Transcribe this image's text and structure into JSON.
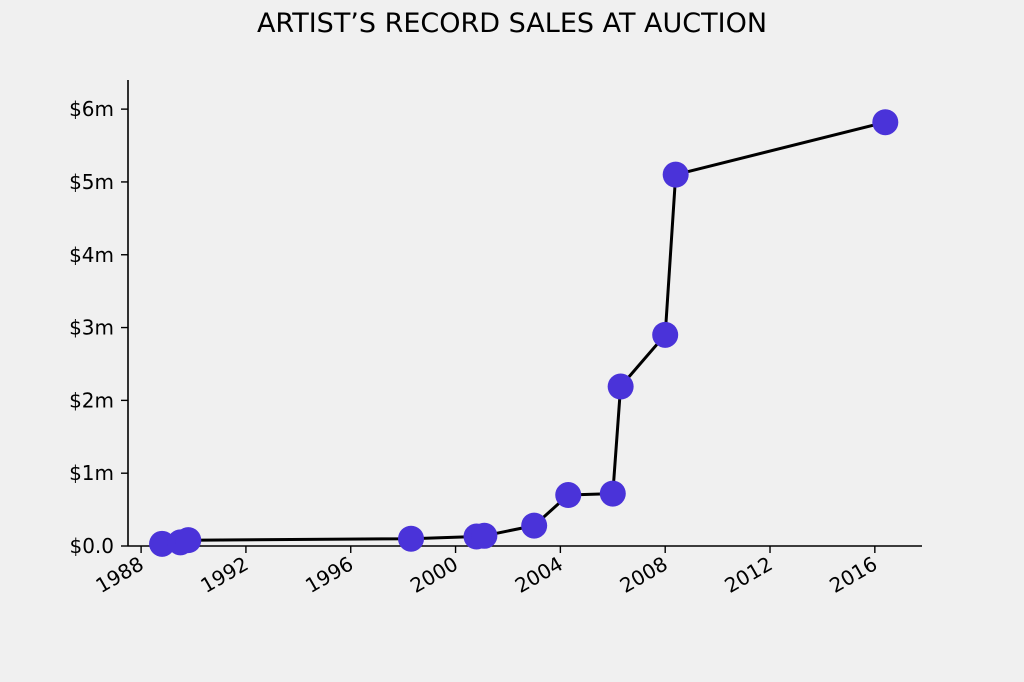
{
  "chart_data": {
    "type": "line",
    "title": "ARTIST’S RECORD SALES AT AUCTION",
    "xlabel": "",
    "ylabel": "",
    "xlim": [
      1987.5,
      2017.8
    ],
    "ylim": [
      0,
      6.4
    ],
    "x_ticks": [
      {
        "value": 1988,
        "label": "1988"
      },
      {
        "value": 1992,
        "label": "1992"
      },
      {
        "value": 1996,
        "label": "1996"
      },
      {
        "value": 2000,
        "label": "2000"
      },
      {
        "value": 2004,
        "label": "2004"
      },
      {
        "value": 2008,
        "label": "2008"
      },
      {
        "value": 2012,
        "label": "2012"
      },
      {
        "value": 2016,
        "label": "2016"
      }
    ],
    "y_ticks": [
      {
        "value": 0,
        "label": "$0.0"
      },
      {
        "value": 1,
        "label": "$1m"
      },
      {
        "value": 2,
        "label": "$2m"
      },
      {
        "value": 3,
        "label": "$3m"
      },
      {
        "value": 4,
        "label": "$4m"
      },
      {
        "value": 5,
        "label": "$5m"
      },
      {
        "value": 6,
        "label": "$6m"
      }
    ],
    "grid": false,
    "series": [
      {
        "color": "#4a33d9",
        "line_color": "#000000",
        "points": [
          {
            "x": 1988.8,
            "y": 0.03
          },
          {
            "x": 1989.5,
            "y": 0.05
          },
          {
            "x": 1989.8,
            "y": 0.08
          },
          {
            "x": 1998.3,
            "y": 0.1
          },
          {
            "x": 2000.8,
            "y": 0.13
          },
          {
            "x": 2001.1,
            "y": 0.14
          },
          {
            "x": 2003.0,
            "y": 0.28
          },
          {
            "x": 2004.3,
            "y": 0.7
          },
          {
            "x": 2006.0,
            "y": 0.72
          },
          {
            "x": 2006.3,
            "y": 2.19
          },
          {
            "x": 2008.0,
            "y": 2.9
          },
          {
            "x": 2008.4,
            "y": 5.1
          },
          {
            "x": 2016.4,
            "y": 5.82
          }
        ]
      }
    ]
  }
}
